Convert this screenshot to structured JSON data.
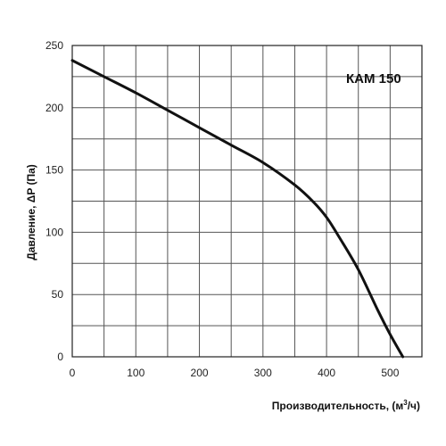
{
  "chart_data": {
    "type": "line",
    "xlabel": "Производительность, (м",
    "xlabel_sup": "3",
    "xlabel_tail": "/ч)",
    "ylabel": "Давление, ΔP (Па)",
    "series": [
      {
        "name": "КАМ 150",
        "x": [
          0,
          50,
          100,
          150,
          200,
          250,
          300,
          350,
          380,
          400,
          420,
          450,
          480,
          500,
          520
        ],
        "y": [
          238,
          225,
          212,
          198,
          184,
          170,
          156,
          138,
          124,
          112,
          96,
          70,
          38,
          18,
          0
        ]
      }
    ],
    "xlim": [
      0,
      550
    ],
    "ylim": [
      0,
      250
    ],
    "x_ticks": [
      "0",
      "100",
      "200",
      "300",
      "400",
      "500"
    ],
    "x_tick_values": [
      0,
      100,
      200,
      300,
      400,
      500
    ],
    "y_ticks": [
      "0",
      "50",
      "100",
      "150",
      "200",
      "250"
    ],
    "y_tick_values": [
      0,
      50,
      100,
      150,
      200,
      250
    ],
    "x_grid_step": 50,
    "y_grid_step": 25,
    "grid": true,
    "line_color": "#111111",
    "grid_color": "#555555"
  }
}
